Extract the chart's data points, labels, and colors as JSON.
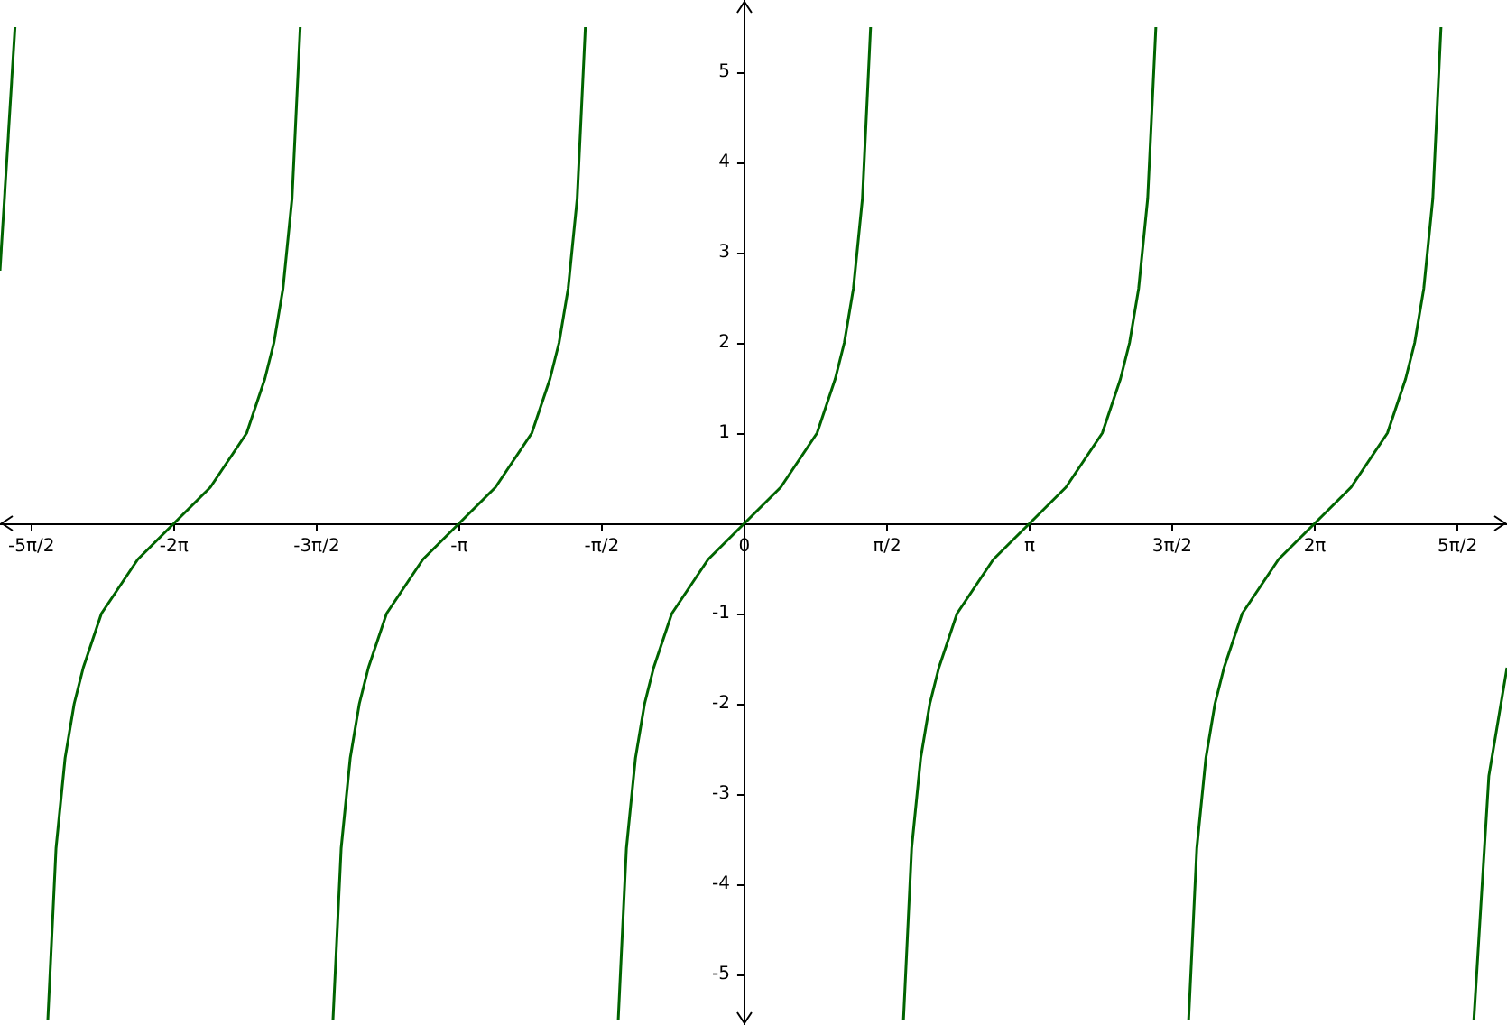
{
  "chart_data": {
    "type": "line",
    "xlim": [
      -8.2,
      8.4
    ],
    "ylim": [
      -5.56,
      5.8
    ],
    "xticks": [
      {
        "value": -7.854,
        "label": "-5π/2"
      },
      {
        "value": -6.283,
        "label": "-2π"
      },
      {
        "value": -4.712,
        "label": "-3π/2"
      },
      {
        "value": -3.142,
        "label": "-π"
      },
      {
        "value": -1.571,
        "label": "-π/2"
      },
      0,
      {
        "value": 1.571,
        "label": "π/2"
      },
      {
        "value": 3.142,
        "label": "π"
      },
      {
        "value": 4.712,
        "label": "3π/2"
      },
      {
        "value": 6.283,
        "label": "2π"
      },
      {
        "value": 7.854,
        "label": "5π/2"
      }
    ],
    "yticks": [
      -5,
      -4,
      -3,
      -2,
      -1,
      {
        "value": 0,
        "label": null
      },
      1,
      2,
      3,
      4,
      5
    ],
    "grid": false,
    "marker": "none",
    "line_style": "solid",
    "series": [
      {
        "color": "#006400",
        "x": [
          -8.2,
          -8.035
        ],
        "values": [
          2.8,
          5.5
        ]
      },
      {
        "color": "#006400",
        "x": [
          -7.673,
          -7.583,
          -7.483,
          -7.383,
          -7.283,
          -7.083,
          -6.883,
          -6.683,
          -6.483,
          -6.283,
          -6.083,
          -5.883,
          -5.683,
          -5.483,
          -5.283,
          -5.183,
          -5.083,
          -4.983,
          -4.893
        ],
        "values": [
          -5.5,
          -3.6,
          -2.6,
          -2,
          -1.6,
          -1,
          -0.7,
          -0.4,
          -0.2,
          0,
          0.2,
          0.4,
          0.7,
          1,
          1.6,
          2,
          2.6,
          3.6,
          5.5
        ]
      },
      {
        "color": "#006400",
        "x": [
          -4.532,
          -4.442,
          -4.342,
          -4.242,
          -4.142,
          -3.942,
          -3.742,
          -3.542,
          -3.342,
          -3.142,
          -2.942,
          -2.742,
          -2.542,
          -2.342,
          -2.142,
          -2.042,
          -1.942,
          -1.842,
          -1.752
        ],
        "values": [
          -5.5,
          -3.6,
          -2.6,
          -2,
          -1.6,
          -1,
          -0.7,
          -0.4,
          -0.2,
          0,
          0.2,
          0.4,
          0.7,
          1,
          1.6,
          2,
          2.6,
          3.6,
          5.5
        ]
      },
      {
        "color": "#006400",
        "x": [
          -1.39,
          -1.3,
          -1.2,
          -1.1,
          -1.0,
          -0.8,
          -0.6,
          -0.4,
          -0.2,
          0,
          0.2,
          0.4,
          0.6,
          0.8,
          1.0,
          1.1,
          1.2,
          1.3,
          1.39
        ],
        "values": [
          -5.5,
          -3.6,
          -2.6,
          -2,
          -1.6,
          -1,
          -0.7,
          -0.4,
          -0.2,
          0,
          0.2,
          0.4,
          0.7,
          1,
          1.6,
          2,
          2.6,
          3.6,
          5.5
        ]
      },
      {
        "color": "#006400",
        "x": [
          1.752,
          1.842,
          1.942,
          2.042,
          2.142,
          2.342,
          2.542,
          2.742,
          2.942,
          3.142,
          3.342,
          3.542,
          3.742,
          3.942,
          4.142,
          4.242,
          4.342,
          4.442,
          4.532
        ],
        "values": [
          -5.5,
          -3.6,
          -2.6,
          -2,
          -1.6,
          -1,
          -0.7,
          -0.4,
          -0.2,
          0,
          0.2,
          0.4,
          0.7,
          1,
          1.6,
          2,
          2.6,
          3.6,
          5.5
        ]
      },
      {
        "color": "#006400",
        "x": [
          4.893,
          4.983,
          5.083,
          5.183,
          5.283,
          5.483,
          5.683,
          5.883,
          6.083,
          6.283,
          6.483,
          6.683,
          6.883,
          7.083,
          7.283,
          7.383,
          7.483,
          7.583,
          7.673
        ],
        "values": [
          -5.5,
          -3.6,
          -2.6,
          -2,
          -1.6,
          -1,
          -0.7,
          -0.4,
          -0.2,
          0,
          0.2,
          0.4,
          0.7,
          1,
          1.6,
          2,
          2.6,
          3.6,
          5.5
        ]
      },
      {
        "color": "#006400",
        "x": [
          8.035,
          8.2,
          8.4
        ],
        "values": [
          -5.5,
          -2.8,
          -1.6
        ]
      }
    ]
  }
}
